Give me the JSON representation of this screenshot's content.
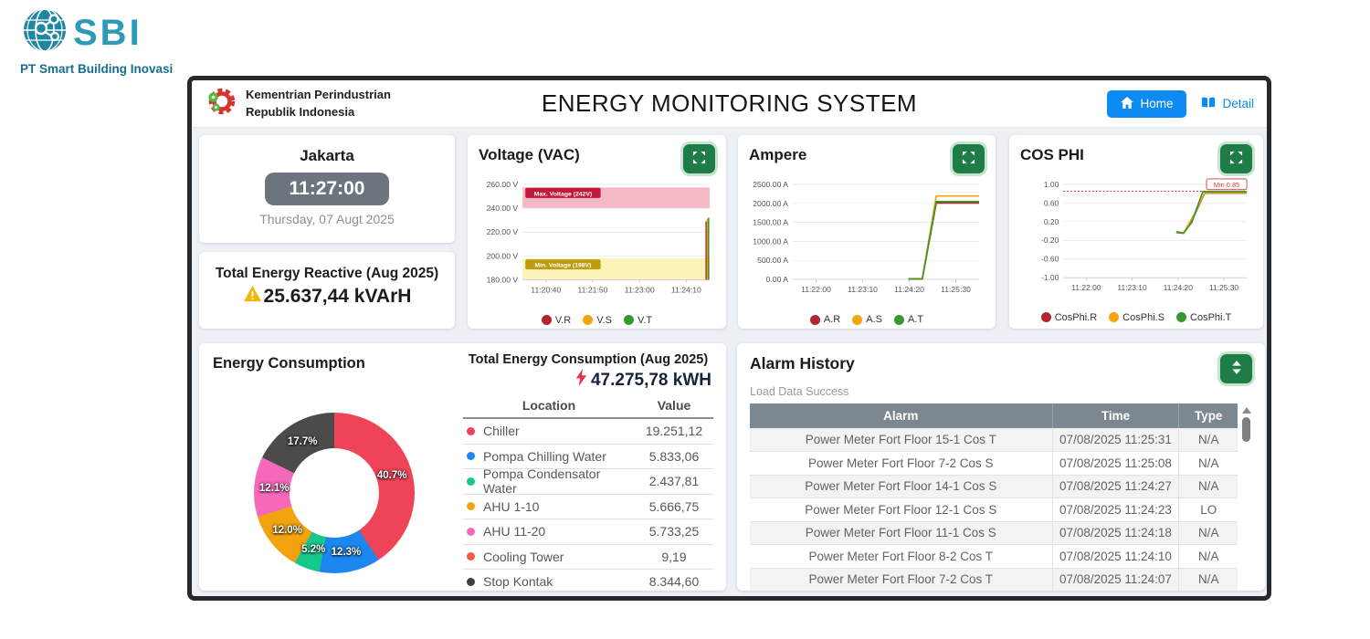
{
  "brand": {
    "logo_text": "SBI",
    "company": "PT Smart Building Inovasi"
  },
  "header": {
    "org_line1": "Kementrian Perindustrian",
    "org_line2": "Republik Indonesia",
    "title": "ENERGY MONITORING SYSTEM",
    "home_label": "Home",
    "detail_label": "Detail"
  },
  "clock": {
    "city": "Jakarta",
    "time": "11:27:00",
    "date": "Thursday, 07 Augt 2025"
  },
  "reactive": {
    "title": "Total Energy Reactive (Aug 2025)",
    "value": "25.637,44 kVArH"
  },
  "energy": {
    "title": "Energy Consumption",
    "total_title": "Total Energy Consumption (Aug 2025)",
    "total_value": "47.275,78 kWH",
    "col_location": "Location",
    "col_value": "Value",
    "rows": [
      {
        "label": "Chiller",
        "value": "19.251,12",
        "color": "#f14360"
      },
      {
        "label": "Pompa Chilling Water",
        "value": "5.833,06",
        "color": "#1d87f0"
      },
      {
        "label": "Pompa Condensator Water",
        "value": "2.437,81",
        "color": "#16c98a"
      },
      {
        "label": "AHU 1-10",
        "value": "5.666,75",
        "color": "#f2a30f"
      },
      {
        "label": "AHU 11-20",
        "value": "5.733,25",
        "color": "#f668b9"
      },
      {
        "label": "Cooling Tower",
        "value": "9,19",
        "color": "#f25c40"
      },
      {
        "label": "Stop Kontak",
        "value": "8.344,60",
        "color": "#3f3f3f"
      }
    ]
  },
  "alarm": {
    "title": "Alarm History",
    "status": "Load Data Success",
    "col_alarm": "Alarm",
    "col_time": "Time",
    "col_type": "Type",
    "rows": [
      {
        "alarm": "Power Meter Fort Floor 15-1 Cos T",
        "time": "07/08/2025 11:25:31",
        "type": "N/A"
      },
      {
        "alarm": "Power Meter Fort Floor 7-2 Cos S",
        "time": "07/08/2025 11:25:08",
        "type": "N/A"
      },
      {
        "alarm": "Power Meter Fort Floor 14-1 Cos S",
        "time": "07/08/2025 11:24:27",
        "type": "N/A"
      },
      {
        "alarm": "Power Meter Fort Floor 12-1 Cos S",
        "time": "07/08/2025 11:24:23",
        "type": "LO"
      },
      {
        "alarm": "Power Meter Fort Floor 11-1 Cos S",
        "time": "07/08/2025 11:24:18",
        "type": "N/A"
      },
      {
        "alarm": "Power Meter Fort Floor 8-2 Cos T",
        "time": "07/08/2025 11:24:10",
        "type": "N/A"
      },
      {
        "alarm": "Power Meter Fort Floor 7-2 Cos T",
        "time": "07/08/2025 11:24:07",
        "type": "N/A"
      }
    ]
  },
  "chart_data": [
    {
      "type": "line",
      "title": "Voltage (VAC)",
      "ylim": [
        180,
        260
      ],
      "y_ticks": [
        {
          "value": 260,
          "label": "260.00 V"
        },
        {
          "value": 240,
          "label": "240.00 V"
        },
        {
          "value": 220,
          "label": "220.00 V"
        },
        {
          "value": 200,
          "label": "200.00 V"
        },
        {
          "value": 180,
          "label": "180.00 V"
        }
      ],
      "x_ticks": [
        "11:20:40",
        "11:21:50",
        "11:23:00",
        "11:24:10"
      ],
      "bands": [
        {
          "label": "Max. Voltage (242V)",
          "from": 240,
          "to": 257.5,
          "badge_y": 252.5,
          "color": "#f5b9c6",
          "badge": "#c2183b"
        },
        {
          "label": "Min. Voltage (198V)",
          "from": 180,
          "to": 198,
          "badge_y": 192.5,
          "color": "#fbf3b8",
          "badge": "#bf9b10"
        }
      ],
      "series": [
        {
          "name": "V.R",
          "color": "#b3252e",
          "points": [
            [
              0.982,
              180
            ],
            [
              0.982,
              229
            ]
          ]
        },
        {
          "name": "V.S",
          "color": "#f2a60d",
          "points": [
            [
              0.988,
              180
            ],
            [
              0.988,
              231
            ]
          ]
        },
        {
          "name": "V.T",
          "color": "#379a30",
          "points": [
            [
              0.994,
              180
            ],
            [
              0.994,
              232
            ]
          ]
        }
      ]
    },
    {
      "type": "line",
      "title": "Ampere",
      "ylim": [
        0,
        2500
      ],
      "y_ticks": [
        {
          "value": 2500,
          "label": "2500.00 A"
        },
        {
          "value": 2000,
          "label": "2000.00 A"
        },
        {
          "value": 1500,
          "label": "1500.00 A"
        },
        {
          "value": 1000,
          "label": "1000.00 A"
        },
        {
          "value": 500,
          "label": "500.00 A"
        },
        {
          "value": 0,
          "label": "0.00 A"
        }
      ],
      "x_ticks": [
        "11:22:00",
        "11:23:10",
        "11:24:20",
        "11:25:30"
      ],
      "bands": [],
      "series": [
        {
          "name": "A.R",
          "color": "#b3252e",
          "points": [
            [
              0.62,
              8
            ],
            [
              0.695,
              8
            ],
            [
              0.77,
              2010
            ],
            [
              1,
              2010
            ]
          ]
        },
        {
          "name": "A.S",
          "color": "#f2a60d",
          "points": [
            [
              0.62,
              20
            ],
            [
              0.695,
              20
            ],
            [
              0.77,
              2195
            ],
            [
              1,
              2195
            ]
          ]
        },
        {
          "name": "A.T",
          "color": "#379a30",
          "points": [
            [
              0.62,
              10
            ],
            [
              0.695,
              12
            ],
            [
              0.77,
              2045
            ],
            [
              1,
              2045
            ]
          ]
        }
      ]
    },
    {
      "type": "line",
      "title": "COS PHI",
      "ylim": [
        -1,
        1
      ],
      "y_ticks": [
        {
          "value": 1.0,
          "label": "1.00"
        },
        {
          "value": 0.6,
          "label": "0.60"
        },
        {
          "value": 0.2,
          "label": "0.20"
        },
        {
          "value": -0.2,
          "label": "-0.20"
        },
        {
          "value": -0.6,
          "label": "-0.60"
        },
        {
          "value": -1.0,
          "label": "-1.00"
        }
      ],
      "x_ticks": [
        "11:22:00",
        "11:23:10",
        "11:24:20",
        "11:25:30"
      ],
      "bands": [],
      "threshold": {
        "value": 0.85,
        "label": "Min 0.85",
        "badge_y": 1.0,
        "color": "#d43a3a"
      },
      "series": [
        {
          "name": "CosPhi.R",
          "color": "#b3252e",
          "points": [
            [
              0.615,
              -0.03
            ],
            [
              0.655,
              -0.05
            ],
            [
              0.71,
              0.3
            ],
            [
              0.77,
              0.81
            ],
            [
              1,
              0.81
            ]
          ]
        },
        {
          "name": "CosPhi.S",
          "color": "#f2a60d",
          "points": [
            [
              0.615,
              -0.02
            ],
            [
              0.655,
              -0.04
            ],
            [
              0.71,
              0.33
            ],
            [
              0.77,
              0.82
            ],
            [
              1,
              0.82
            ]
          ]
        },
        {
          "name": "CosPhi.T",
          "color": "#379a30",
          "points": [
            [
              0.615,
              -0.01
            ],
            [
              0.655,
              -0.05
            ],
            [
              0.7,
              0.18
            ],
            [
              0.76,
              0.84
            ],
            [
              1,
              0.84
            ]
          ]
        }
      ]
    },
    {
      "type": "donut",
      "title": "Energy Consumption",
      "slices": [
        {
          "label": "Chiller",
          "pct": 40.7,
          "color": "#ef4358"
        },
        {
          "label": "Pompa Chilling Water",
          "pct": 12.3,
          "color": "#1d87f0"
        },
        {
          "label": "Pompa Condensator Water",
          "pct": 5.2,
          "color": "#16c98a"
        },
        {
          "label": "AHU 1-10",
          "pct": 12.0,
          "color": "#f2a30f"
        },
        {
          "label": "AHU 11-20",
          "pct": 12.1,
          "color": "#f668b9"
        },
        {
          "label": "Cooling Tower",
          "pct": 0.0,
          "color": "#f25c40"
        },
        {
          "label": "Stop Kontak",
          "pct": 17.7,
          "color": "#4b4b4b"
        }
      ]
    }
  ]
}
